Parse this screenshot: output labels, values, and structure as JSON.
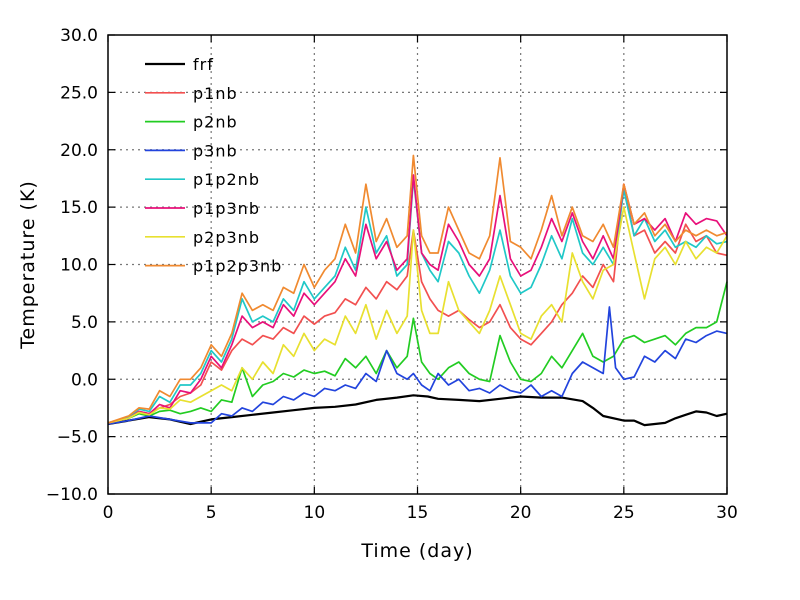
{
  "chart_data": {
    "type": "line",
    "xlabel": "Time (day)",
    "ylabel": "Temperature (K)",
    "xlim": [
      0,
      30
    ],
    "ylim": [
      -10,
      30
    ],
    "x_ticks": [
      0,
      5,
      10,
      15,
      20,
      25,
      30
    ],
    "x_tick_labels": [
      "0",
      "5",
      "10",
      "15",
      "20",
      "25",
      "30"
    ],
    "y_ticks": [
      -10,
      -5,
      0,
      5,
      10,
      15,
      20,
      25,
      30
    ],
    "y_tick_labels": [
      "−10.0",
      "−5.0",
      "0.0",
      "5.0",
      "10.0",
      "15.0",
      "20.0",
      "25.0",
      "30.0"
    ],
    "grid": true,
    "legend_position": "top-left",
    "series": [
      {
        "name": "frf",
        "color": "#000000",
        "x": [
          0,
          1,
          2,
          3,
          4,
          5,
          6,
          7,
          8,
          9,
          10,
          11,
          12,
          13,
          14,
          14.8,
          15.5,
          16,
          17,
          18,
          19,
          20,
          21,
          22,
          23,
          23.5,
          24,
          25,
          25.5,
          26,
          27,
          27.5,
          28,
          28.5,
          29,
          29.5,
          30
        ],
        "y": [
          -3.9,
          -3.6,
          -3.3,
          -3.5,
          -3.9,
          -3.5,
          -3.3,
          -3.1,
          -2.9,
          -2.7,
          -2.5,
          -2.4,
          -2.2,
          -1.8,
          -1.6,
          -1.4,
          -1.5,
          -1.7,
          -1.8,
          -1.9,
          -1.7,
          -1.5,
          -1.6,
          -1.6,
          -1.9,
          -2.5,
          -3.2,
          -3.6,
          -3.6,
          -4.0,
          -3.8,
          -3.4,
          -3.1,
          -2.8,
          -2.9,
          -3.2,
          -3.0
        ]
      },
      {
        "name": "p1nb",
        "color": "#f25050",
        "x": [
          0,
          1,
          1.5,
          2,
          2.5,
          3,
          3.5,
          4,
          4.5,
          5,
          5.5,
          6,
          6.5,
          7,
          7.5,
          8,
          8.5,
          9,
          9.5,
          10,
          10.5,
          11,
          11.5,
          12,
          12.5,
          13,
          13.5,
          14,
          14.5,
          14.8,
          15.2,
          15.6,
          16,
          16.5,
          17,
          17.5,
          18,
          18.5,
          19,
          19.5,
          20,
          20.5,
          21,
          21.5,
          22,
          22.5,
          23,
          23.5,
          24,
          24.5,
          25,
          25.5,
          26,
          26.5,
          27,
          27.5,
          28,
          28.5,
          29,
          29.5,
          30
        ],
        "y": [
          -3.8,
          -3.3,
          -2.8,
          -3.0,
          -2.5,
          -2.2,
          -1.5,
          -1.2,
          -0.5,
          1.5,
          0.8,
          2.5,
          3.5,
          3.0,
          3.8,
          3.5,
          4.5,
          4.0,
          5.5,
          4.8,
          5.5,
          5.8,
          7.0,
          6.5,
          8.0,
          7.0,
          8.5,
          7.8,
          9.0,
          13.0,
          8.5,
          7.0,
          6.0,
          5.5,
          6.0,
          5.2,
          4.5,
          5.0,
          6.5,
          4.5,
          3.5,
          3.0,
          4.0,
          5.0,
          6.5,
          7.5,
          9.0,
          8.0,
          10.0,
          8.5,
          17.0,
          12.5,
          13.0,
          11.0,
          12.0,
          11.0,
          13.5,
          12.0,
          12.5,
          11.0,
          10.8
        ]
      },
      {
        "name": "p2nb",
        "color": "#22cc22",
        "x": [
          0,
          1,
          1.5,
          2,
          2.5,
          3,
          3.5,
          4,
          4.5,
          5,
          5.5,
          6,
          6.5,
          7,
          7.5,
          8,
          8.5,
          9,
          9.5,
          10,
          10.5,
          11,
          11.5,
          12,
          12.5,
          13,
          13.5,
          14,
          14.5,
          14.8,
          15.2,
          15.6,
          16,
          16.5,
          17,
          17.5,
          18,
          18.5,
          19,
          19.5,
          20,
          20.5,
          21,
          21.5,
          22,
          22.5,
          23,
          23.5,
          24,
          24.5,
          25,
          25.5,
          26,
          26.5,
          27,
          27.5,
          28,
          28.5,
          29,
          29.5,
          30
        ],
        "y": [
          -3.8,
          -3.4,
          -3.0,
          -3.2,
          -2.8,
          -2.7,
          -3.0,
          -2.8,
          -2.5,
          -2.8,
          -1.8,
          -2.0,
          1.0,
          -1.5,
          -0.5,
          -0.2,
          0.5,
          0.2,
          0.8,
          0.5,
          0.7,
          0.3,
          1.8,
          1.0,
          2.0,
          0.5,
          2.5,
          1.0,
          2.0,
          5.3,
          1.5,
          0.5,
          0.0,
          1.0,
          1.5,
          0.5,
          0.0,
          -0.2,
          3.8,
          1.5,
          0.0,
          -0.2,
          0.5,
          2.0,
          1.0,
          2.5,
          4.0,
          2.0,
          1.5,
          2.0,
          3.5,
          3.8,
          3.2,
          3.5,
          3.8,
          3.0,
          4.0,
          4.5,
          4.5,
          5.0,
          8.5
        ]
      },
      {
        "name": "p3nb",
        "color": "#2244dd",
        "x": [
          0,
          1,
          2,
          3,
          4,
          5,
          5.5,
          6,
          6.5,
          7,
          7.5,
          8,
          8.5,
          9,
          9.5,
          10,
          10.5,
          11,
          11.5,
          12,
          12.5,
          13,
          13.5,
          14,
          14.5,
          14.8,
          15.2,
          15.6,
          16,
          16.5,
          17,
          17.5,
          18,
          18.5,
          19,
          19.5,
          20,
          20.5,
          21,
          21.5,
          22,
          22.5,
          23,
          23.5,
          24,
          24.3,
          24.6,
          25,
          25.5,
          26,
          26.5,
          27,
          27.5,
          28,
          28.5,
          29,
          29.5,
          30
        ],
        "y": [
          -3.9,
          -3.6,
          -3.2,
          -3.5,
          -3.8,
          -3.8,
          -3.0,
          -3.2,
          -2.5,
          -2.8,
          -2.0,
          -2.2,
          -1.5,
          -1.8,
          -1.2,
          -1.5,
          -0.8,
          -1.0,
          -0.5,
          -0.8,
          0.5,
          -0.2,
          2.5,
          0.5,
          0.0,
          0.5,
          -0.5,
          -1.0,
          0.5,
          -0.5,
          0.0,
          -1.0,
          -0.8,
          -1.2,
          -0.5,
          -1.0,
          -1.2,
          -0.5,
          -1.5,
          -1.0,
          -1.5,
          0.5,
          1.5,
          1.0,
          0.5,
          6.3,
          1.0,
          0.0,
          0.2,
          2.0,
          1.5,
          2.5,
          1.8,
          3.5,
          3.2,
          3.8,
          4.2,
          4.0
        ]
      },
      {
        "name": "p1p2nb",
        "color": "#20c8c8",
        "x": [
          0,
          1,
          1.5,
          2,
          2.5,
          3,
          3.5,
          4,
          4.5,
          5,
          5.5,
          6,
          6.5,
          7,
          7.5,
          8,
          8.5,
          9,
          9.5,
          10,
          10.5,
          11,
          11.5,
          12,
          12.5,
          13,
          13.5,
          14,
          14.5,
          14.8,
          15.2,
          15.6,
          16,
          16.5,
          17,
          17.5,
          18,
          18.5,
          19,
          19.5,
          20,
          20.5,
          21,
          21.5,
          22,
          22.5,
          23,
          23.5,
          24,
          24.5,
          25,
          25.5,
          26,
          26.5,
          27,
          27.5,
          28,
          28.5,
          29,
          29.5,
          30
        ],
        "y": [
          -3.8,
          -3.3,
          -2.6,
          -2.8,
          -1.5,
          -2.0,
          -0.5,
          -0.5,
          0.5,
          2.5,
          1.5,
          3.5,
          7.0,
          5.0,
          5.5,
          5.0,
          7.0,
          6.0,
          8.5,
          7.0,
          8.0,
          9.0,
          11.5,
          9.5,
          15.0,
          11.0,
          12.5,
          9.0,
          10.0,
          17.5,
          11.0,
          9.5,
          8.5,
          12.0,
          11.0,
          9.0,
          7.5,
          9.5,
          13.0,
          9.0,
          7.5,
          8.0,
          10.0,
          12.5,
          10.5,
          14.0,
          11.0,
          10.0,
          11.5,
          10.0,
          16.5,
          12.5,
          14.0,
          12.0,
          13.0,
          11.5,
          12.0,
          11.5,
          12.5,
          11.8,
          12.0
        ]
      },
      {
        "name": "p1p3nb",
        "color": "#e8107a",
        "x": [
          0,
          1,
          1.5,
          2,
          2.5,
          3,
          3.5,
          4,
          4.5,
          5,
          5.5,
          6,
          6.5,
          7,
          7.5,
          8,
          8.5,
          9,
          9.5,
          10,
          10.5,
          11,
          11.5,
          12,
          12.5,
          13,
          13.5,
          14,
          14.5,
          14.8,
          15.2,
          15.6,
          16,
          16.5,
          17,
          17.5,
          18,
          18.5,
          19,
          19.5,
          20,
          20.5,
          21,
          21.5,
          22,
          22.5,
          23,
          23.5,
          24,
          24.5,
          25,
          25.5,
          26,
          26.5,
          27,
          27.5,
          28,
          28.5,
          29,
          29.5,
          30
        ],
        "y": [
          -3.8,
          -3.4,
          -2.8,
          -3.0,
          -2.2,
          -2.5,
          -1.0,
          -1.2,
          0.0,
          2.0,
          1.0,
          3.0,
          5.5,
          4.5,
          5.0,
          4.5,
          6.5,
          5.5,
          7.5,
          6.5,
          7.5,
          8.5,
          10.5,
          9.0,
          13.5,
          10.5,
          12.0,
          9.5,
          10.5,
          17.8,
          11.0,
          10.0,
          9.5,
          13.5,
          12.0,
          10.0,
          9.0,
          10.5,
          16.0,
          10.5,
          9.0,
          9.5,
          11.5,
          14.0,
          12.0,
          14.5,
          12.0,
          10.5,
          12.5,
          10.5,
          17.0,
          13.5,
          14.0,
          13.0,
          14.0,
          12.0,
          14.5,
          13.5,
          14.0,
          13.8,
          12.5
        ]
      },
      {
        "name": "p2p3nb",
        "color": "#e8e030",
        "x": [
          0,
          1,
          1.5,
          2,
          2.5,
          3,
          3.5,
          4,
          4.5,
          5,
          5.5,
          6,
          6.5,
          7,
          7.5,
          8,
          8.5,
          9,
          9.5,
          10,
          10.5,
          11,
          11.5,
          12,
          12.5,
          13,
          13.5,
          14,
          14.5,
          14.8,
          15.2,
          15.6,
          16,
          16.5,
          17,
          17.5,
          18,
          18.5,
          19,
          19.5,
          20,
          20.5,
          21,
          21.5,
          22,
          22.5,
          23,
          23.5,
          24,
          24.5,
          25,
          25.5,
          26,
          26.5,
          27,
          27.5,
          28,
          28.5,
          29,
          29.5,
          30
        ],
        "y": [
          -3.8,
          -3.4,
          -2.9,
          -3.1,
          -2.5,
          -2.6,
          -1.8,
          -2.0,
          -1.5,
          -1.0,
          -0.5,
          -1.0,
          1.0,
          0.0,
          1.5,
          0.5,
          3.0,
          2.0,
          4.0,
          2.5,
          3.5,
          3.0,
          5.5,
          4.0,
          6.5,
          3.5,
          6.0,
          4.0,
          5.5,
          13.0,
          6.0,
          4.0,
          4.0,
          8.5,
          6.0,
          5.0,
          4.0,
          6.0,
          9.0,
          6.5,
          4.0,
          3.5,
          5.5,
          6.5,
          5.0,
          11.0,
          8.5,
          7.0,
          9.5,
          10.0,
          15.0,
          11.0,
          7.0,
          10.5,
          11.5,
          10.0,
          12.0,
          10.5,
          11.5,
          11.0,
          12.5
        ]
      },
      {
        "name": "p1p2p3nb",
        "color": "#f08a30",
        "x": [
          0,
          1,
          1.5,
          2,
          2.5,
          3,
          3.5,
          4,
          4.5,
          5,
          5.5,
          6,
          6.5,
          7,
          7.5,
          8,
          8.5,
          9,
          9.5,
          10,
          10.5,
          11,
          11.5,
          12,
          12.5,
          13,
          13.5,
          14,
          14.5,
          14.8,
          15.2,
          15.6,
          16,
          16.5,
          17,
          17.5,
          18,
          18.5,
          19,
          19.5,
          20,
          20.5,
          21,
          21.5,
          22,
          22.5,
          23,
          23.5,
          24,
          24.5,
          25,
          25.5,
          26,
          26.5,
          27,
          27.5,
          28,
          28.5,
          29,
          29.5,
          30
        ],
        "y": [
          -3.8,
          -3.2,
          -2.5,
          -2.6,
          -1.0,
          -1.5,
          0.0,
          0.0,
          1.0,
          3.0,
          2.0,
          4.0,
          7.5,
          6.0,
          6.5,
          6.0,
          8.0,
          7.5,
          10.0,
          8.0,
          9.5,
          10.5,
          13.5,
          11.0,
          17.0,
          12.0,
          14.0,
          11.5,
          12.5,
          19.5,
          12.5,
          11.0,
          11.0,
          15.0,
          13.0,
          11.0,
          10.5,
          12.5,
          19.3,
          12.0,
          11.5,
          10.5,
          13.0,
          16.0,
          12.5,
          15.0,
          12.5,
          12.0,
          13.5,
          11.5,
          17.0,
          13.5,
          14.5,
          12.5,
          13.5,
          12.0,
          13.0,
          12.5,
          13.0,
          12.5,
          12.8
        ]
      }
    ]
  }
}
